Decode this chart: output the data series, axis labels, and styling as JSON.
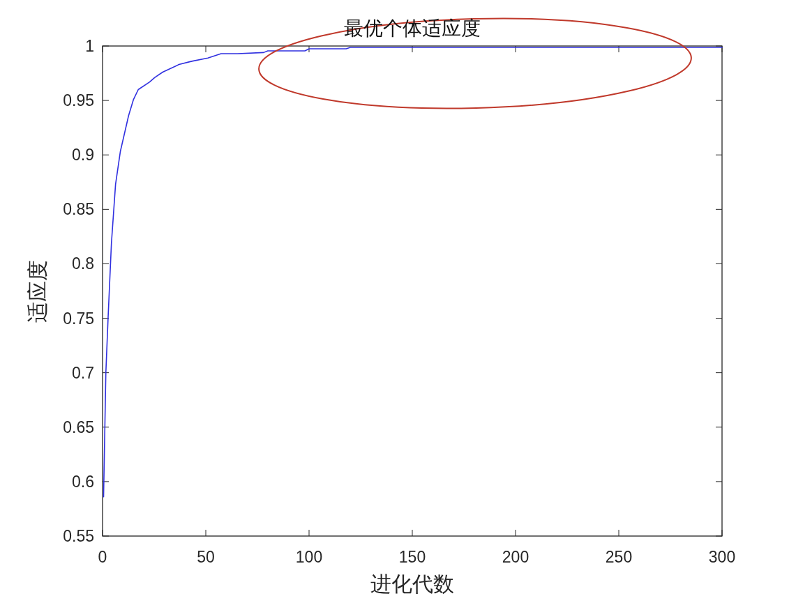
{
  "chart_data": {
    "type": "line",
    "title": "最优个体适应度",
    "xlabel": "进化代数",
    "ylabel": "适应度",
    "xlim": [
      0,
      300
    ],
    "xticks": [
      0,
      50,
      100,
      150,
      200,
      250,
      300
    ],
    "ylim": [
      0.55,
      1
    ],
    "yticks": [
      0.55,
      0.6,
      0.65,
      0.7,
      0.75,
      0.8,
      0.85,
      0.9,
      0.95,
      1
    ],
    "grid": false,
    "marker": "none",
    "line_style": "solid",
    "series": [
      {
        "color": "#3030e0",
        "x": [
          0.5,
          1.6,
          2.7,
          4.3,
          6.3,
          8.6,
          12.6,
          15,
          17.3,
          22.8,
          25.2,
          29.1,
          37,
          43.2,
          51,
          57.4,
          65.4,
          78,
          80,
          98,
          100,
          118,
          120,
          300
        ],
        "values": [
          0.586,
          0.7,
          0.751,
          0.819,
          0.873,
          0.903,
          0.936,
          0.951,
          0.96,
          0.967,
          0.971,
          0.976,
          0.983,
          0.986,
          0.989,
          0.993,
          0.993,
          0.994,
          0.9955,
          0.9955,
          0.9974,
          0.9974,
          0.9987,
          0.9987
        ]
      }
    ]
  }
}
